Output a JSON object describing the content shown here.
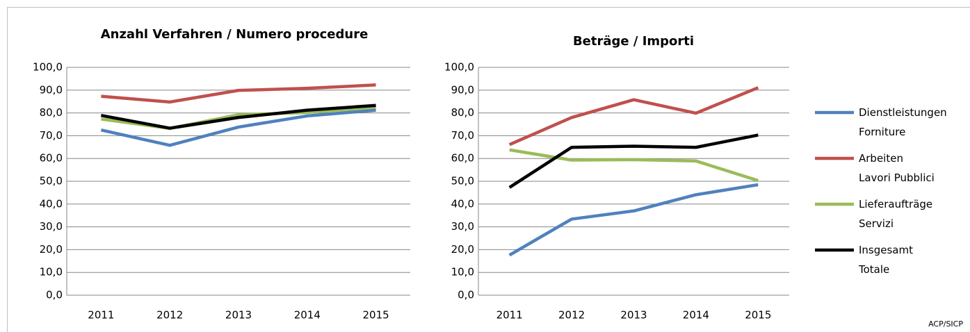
{
  "chart_data": [
    {
      "type": "line",
      "title": "Anzahl Verfahren / Numero procedure",
      "categories": [
        "2011",
        "2012",
        "2013",
        "2014",
        "2015"
      ],
      "ylim": [
        0,
        100
      ],
      "yticks": [
        {
          "value": 0,
          "label": "0,0"
        },
        {
          "value": 10,
          "label": "10,0"
        },
        {
          "value": 20,
          "label": "20,0"
        },
        {
          "value": 30,
          "label": "30,0"
        },
        {
          "value": 40,
          "label": "40,0"
        },
        {
          "value": 50,
          "label": "50,0"
        },
        {
          "value": 60,
          "label": "60,0"
        },
        {
          "value": 70,
          "label": "70,0"
        },
        {
          "value": 80,
          "label": "80,0"
        },
        {
          "value": 90,
          "label": "90,0"
        },
        {
          "value": 100,
          "label": "100,0"
        }
      ],
      "grid": true,
      "series": [
        {
          "color": "#4f81bd",
          "values": [
            72.5,
            65.8,
            73.8,
            78.7,
            81.2
          ]
        },
        {
          "color": "#c0504d",
          "values": [
            87.3,
            84.8,
            89.9,
            90.8,
            92.3
          ]
        },
        {
          "color": "#9bbb59",
          "values": [
            77.3,
            73.2,
            79.2,
            80.2,
            82.5
          ]
        },
        {
          "color": "#000000",
          "values": [
            78.9,
            73.3,
            78.0,
            81.2,
            83.3
          ]
        }
      ]
    },
    {
      "type": "line",
      "title": "Beträge / Importi",
      "categories": [
        "2011",
        "2012",
        "2013",
        "2014",
        "2015"
      ],
      "ylim": [
        0,
        100
      ],
      "yticks": [
        {
          "value": 0,
          "label": "0,0"
        },
        {
          "value": 10,
          "label": "10,0"
        },
        {
          "value": 20,
          "label": "20,0"
        },
        {
          "value": 30,
          "label": "30,0"
        },
        {
          "value": 40,
          "label": "40,0"
        },
        {
          "value": 50,
          "label": "50,0"
        },
        {
          "value": 60,
          "label": "60,0"
        },
        {
          "value": 70,
          "label": "70,0"
        },
        {
          "value": 80,
          "label": "80,0"
        },
        {
          "value": 90,
          "label": "90,0"
        },
        {
          "value": 100,
          "label": "100,0"
        }
      ],
      "grid": true,
      "legend": "right",
      "series": [
        {
          "name": "Dienstleistungen\nForniture",
          "color": "#4f81bd",
          "values": [
            17.6,
            33.4,
            37.0,
            44.1,
            48.5
          ]
        },
        {
          "name": "Arbeiten\nLavori Pubblici",
          "color": "#c0504d",
          "values": [
            66.1,
            78.0,
            85.8,
            79.9,
            91.1
          ]
        },
        {
          "name": "Lieferaufträge\nServizi",
          "color": "#9bbb59",
          "values": [
            63.8,
            59.3,
            59.5,
            58.9,
            50.3
          ]
        },
        {
          "name": "Insgesamt\nTotale",
          "color": "#000000",
          "values": [
            47.3,
            64.9,
            65.4,
            64.9,
            70.3
          ]
        }
      ]
    }
  ],
  "source": "ACP/SICP"
}
